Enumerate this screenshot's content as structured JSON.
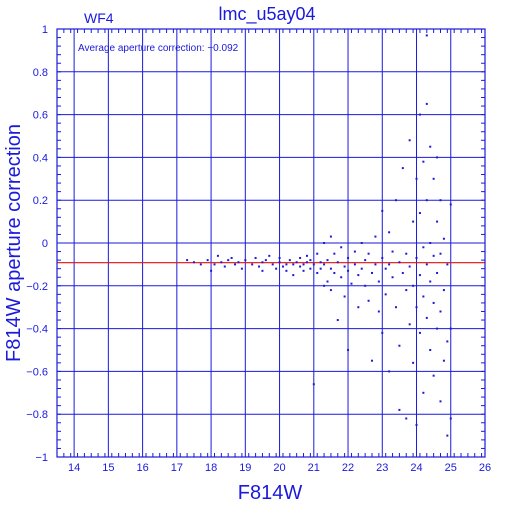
{
  "header": {
    "chip_label": "WF4",
    "title": "lmc_u5ay04"
  },
  "annotation": "Average aperture correction: −0.092",
  "colors": {
    "axis": "#1a1adb",
    "points": "#1a1adb",
    "mean_line": "#e01010",
    "background": "#ffffff"
  },
  "chart_data": {
    "type": "scatter",
    "title": "lmc_u5ay04",
    "xlabel": "F814W",
    "ylabel": "F814W aperture correction",
    "xlim": [
      13.5,
      26
    ],
    "ylim": [
      -1,
      1
    ],
    "grid": true,
    "x_ticks": [
      14,
      15,
      16,
      17,
      18,
      19,
      20,
      21,
      22,
      23,
      24,
      25,
      26
    ],
    "y_ticks": [
      -1,
      -0.8,
      -0.6,
      -0.4,
      -0.2,
      0,
      0.2,
      0.4,
      0.6,
      0.8,
      1
    ],
    "x_tick_labels": [
      "14",
      "15",
      "16",
      "17",
      "18",
      "19",
      "20",
      "21",
      "22",
      "23",
      "24",
      "25",
      "26"
    ],
    "y_tick_labels": [
      "−1",
      "−0.8",
      "−0.6",
      "−0.4",
      "−0.2",
      "0",
      "0.2",
      "0.4",
      "0.6",
      "0.8",
      "1"
    ],
    "mean_line": -0.092,
    "points": [
      [
        17.3,
        -0.08
      ],
      [
        17.5,
        -0.09
      ],
      [
        17.7,
        -0.1
      ],
      [
        17.9,
        -0.08
      ],
      [
        18.0,
        -0.13
      ],
      [
        18.1,
        -0.1
      ],
      [
        18.2,
        -0.06
      ],
      [
        18.3,
        -0.09
      ],
      [
        18.4,
        -0.11
      ],
      [
        18.5,
        -0.08
      ],
      [
        18.6,
        -0.07
      ],
      [
        18.7,
        -0.1
      ],
      [
        18.8,
        -0.09
      ],
      [
        18.9,
        -0.12
      ],
      [
        19.0,
        -0.08
      ],
      [
        19.2,
        -0.1
      ],
      [
        19.3,
        -0.07
      ],
      [
        19.4,
        -0.11
      ],
      [
        19.5,
        -0.09
      ],
      [
        19.5,
        -0.13
      ],
      [
        19.6,
        -0.08
      ],
      [
        19.7,
        -0.06
      ],
      [
        19.8,
        -0.1
      ],
      [
        19.9,
        -0.12
      ],
      [
        20.0,
        -0.09
      ],
      [
        20.0,
        -0.07
      ],
      [
        20.1,
        -0.11
      ],
      [
        20.2,
        -0.1
      ],
      [
        20.2,
        -0.13
      ],
      [
        20.3,
        -0.08
      ],
      [
        20.4,
        -0.1
      ],
      [
        20.4,
        -0.15
      ],
      [
        20.5,
        -0.09
      ],
      [
        20.6,
        -0.11
      ],
      [
        20.6,
        -0.07
      ],
      [
        20.7,
        -0.1
      ],
      [
        20.7,
        -0.13
      ],
      [
        20.8,
        -0.09
      ],
      [
        20.8,
        -0.06
      ],
      [
        20.9,
        -0.12
      ],
      [
        20.9,
        -0.08
      ],
      [
        21.0,
        -0.1
      ],
      [
        21.0,
        -0.66
      ],
      [
        21.1,
        -0.05
      ],
      [
        21.1,
        -0.14
      ],
      [
        21.2,
        -0.09
      ],
      [
        21.2,
        -0.12
      ],
      [
        21.3,
        0.0
      ],
      [
        21.3,
        -0.2
      ],
      [
        21.3,
        -0.1
      ],
      [
        21.4,
        -0.08
      ],
      [
        21.4,
        -0.18
      ],
      [
        21.5,
        0.03
      ],
      [
        21.5,
        -0.12
      ],
      [
        21.5,
        -0.22
      ],
      [
        21.6,
        -0.05
      ],
      [
        21.6,
        -0.14
      ],
      [
        21.7,
        -0.09
      ],
      [
        21.7,
        -0.36
      ],
      [
        21.8,
        -0.02
      ],
      [
        21.8,
        -0.16
      ],
      [
        21.9,
        -0.11
      ],
      [
        21.9,
        -0.25
      ],
      [
        22.0,
        -0.07
      ],
      [
        22.0,
        -0.13
      ],
      [
        22.0,
        -0.5
      ],
      [
        22.1,
        -0.19
      ],
      [
        22.2,
        -0.04
      ],
      [
        22.2,
        -0.1
      ],
      [
        22.3,
        -0.15
      ],
      [
        22.3,
        -0.3
      ],
      [
        22.4,
        0.0
      ],
      [
        22.4,
        -0.12
      ],
      [
        22.5,
        -0.08
      ],
      [
        22.5,
        -0.2
      ],
      [
        22.6,
        -0.27
      ],
      [
        22.6,
        -0.05
      ],
      [
        22.7,
        -0.14
      ],
      [
        22.7,
        -0.55
      ],
      [
        22.8,
        -0.1
      ],
      [
        22.8,
        0.03
      ],
      [
        22.9,
        -0.18
      ],
      [
        22.9,
        -0.32
      ],
      [
        23.0,
        -0.07
      ],
      [
        23.0,
        0.15
      ],
      [
        23.0,
        -0.42
      ],
      [
        23.1,
        -0.12
      ],
      [
        23.1,
        -0.24
      ],
      [
        23.2,
        0.05
      ],
      [
        23.2,
        -0.1
      ],
      [
        23.2,
        -0.6
      ],
      [
        23.3,
        -0.16
      ],
      [
        23.3,
        -0.04
      ],
      [
        23.4,
        -0.3
      ],
      [
        23.4,
        0.2
      ],
      [
        23.5,
        -0.09
      ],
      [
        23.5,
        -0.48
      ],
      [
        23.5,
        -0.78
      ],
      [
        23.6,
        0.35
      ],
      [
        23.6,
        -0.14
      ],
      [
        23.7,
        -0.05
      ],
      [
        23.7,
        -0.22
      ],
      [
        23.7,
        -0.82
      ],
      [
        23.8,
        0.48
      ],
      [
        23.8,
        -0.11
      ],
      [
        23.8,
        -0.38
      ],
      [
        23.9,
        0.1
      ],
      [
        23.9,
        -0.2
      ],
      [
        23.9,
        -0.56
      ],
      [
        24.0,
        0.3
      ],
      [
        24.0,
        -0.07
      ],
      [
        24.0,
        -0.3
      ],
      [
        24.0,
        -0.85
      ],
      [
        24.1,
        0.6
      ],
      [
        24.1,
        0.14
      ],
      [
        24.1,
        -0.15
      ],
      [
        24.1,
        -0.42
      ],
      [
        24.2,
        0.38
      ],
      [
        24.2,
        -0.02
      ],
      [
        24.2,
        -0.25
      ],
      [
        24.2,
        -0.7
      ],
      [
        24.3,
        0.65
      ],
      [
        24.3,
        0.2
      ],
      [
        24.3,
        -0.1
      ],
      [
        24.3,
        -0.35
      ],
      [
        24.3,
        0.97
      ],
      [
        24.4,
        0.45
      ],
      [
        24.4,
        0.0
      ],
      [
        24.4,
        -0.18
      ],
      [
        24.4,
        -0.5
      ],
      [
        24.5,
        0.3
      ],
      [
        24.5,
        -0.06
      ],
      [
        24.5,
        -0.28
      ],
      [
        24.5,
        -0.62
      ],
      [
        24.6,
        0.4
      ],
      [
        24.6,
        0.1
      ],
      [
        24.6,
        -0.14
      ],
      [
        24.6,
        -0.4
      ],
      [
        24.7,
        0.2
      ],
      [
        24.7,
        -0.05
      ],
      [
        24.7,
        -0.32
      ],
      [
        24.7,
        -0.74
      ],
      [
        24.8,
        0.02
      ],
      [
        24.8,
        -0.22
      ],
      [
        24.8,
        -0.55
      ],
      [
        24.9,
        -0.1
      ],
      [
        24.9,
        -0.46
      ],
      [
        24.9,
        -0.9
      ],
      [
        25.0,
        0.18
      ],
      [
        25.0,
        -0.4
      ],
      [
        25.0,
        -0.82
      ]
    ]
  }
}
